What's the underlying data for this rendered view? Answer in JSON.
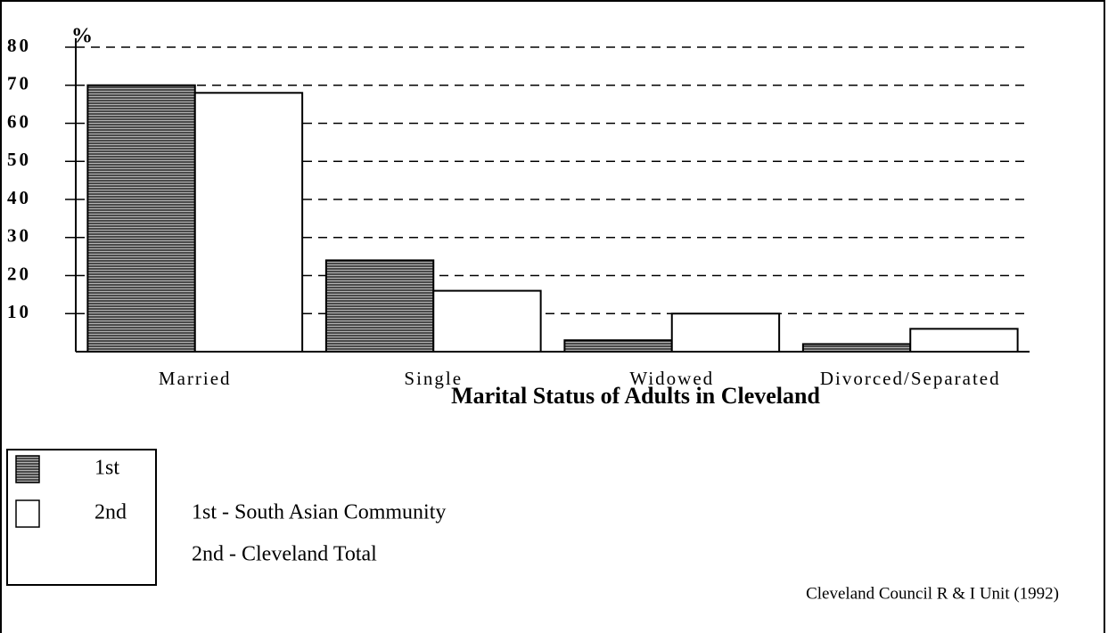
{
  "chart_data": {
    "type": "bar",
    "title": "Marital Status of Adults in Cleveland",
    "y_label": "%",
    "categories": [
      "Married",
      "Single",
      "Widowed",
      "Divorced/Separated"
    ],
    "series": [
      {
        "name": "1st",
        "color": "#4a4a4a",
        "values": [
          70,
          24,
          3,
          2
        ]
      },
      {
        "name": "2nd",
        "color": "#ffffff",
        "values": [
          68,
          16,
          10,
          6
        ]
      }
    ],
    "ylim": [
      0,
      80
    ],
    "yticks": [
      10,
      20,
      30,
      40,
      50,
      60,
      70,
      80
    ],
    "grid": true,
    "notes": [
      "1st - South Asian Community",
      "2nd - Cleveland Total"
    ],
    "source": "Cleveland Council R & I Unit (1992)"
  }
}
